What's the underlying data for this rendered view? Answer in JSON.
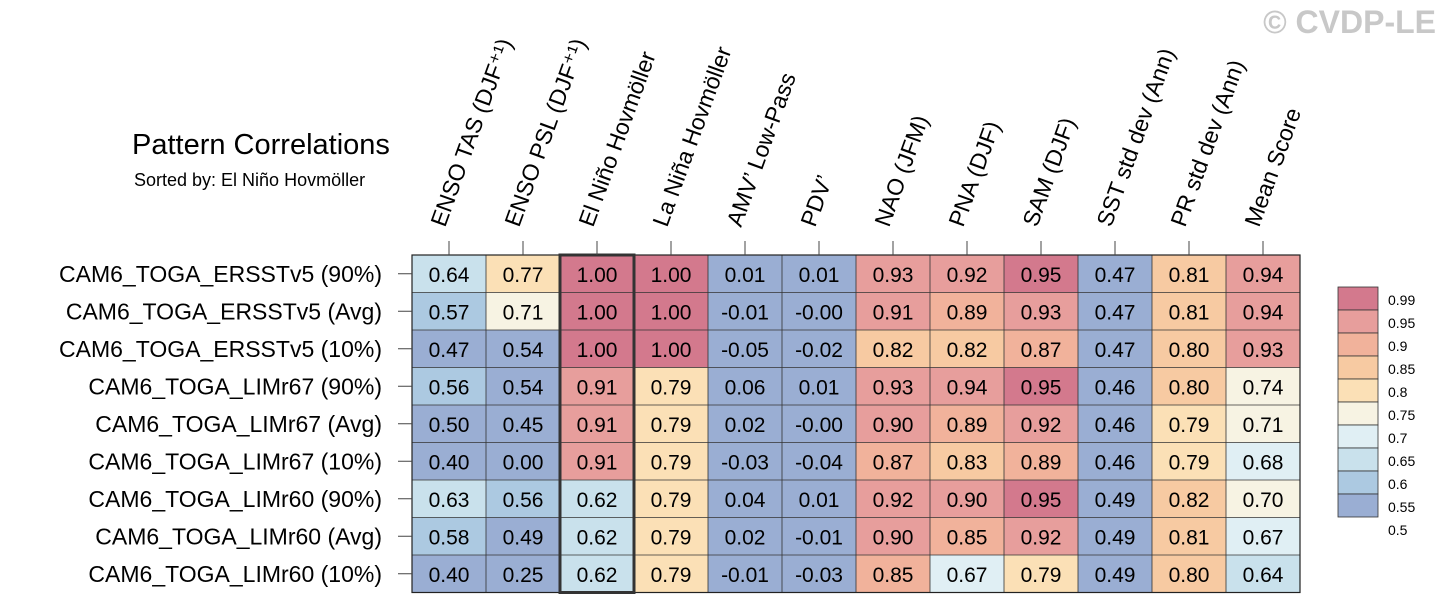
{
  "watermark": "© CVDP-LE",
  "chart_data": {
    "type": "heatmap",
    "title": "Pattern Correlations",
    "subtitle": "Sorted by: El Niño Hovmöller",
    "columns": [
      "ENSO TAS (DJF⁺¹)",
      "ENSO PSL (DJF⁺¹)",
      "El Niño Hovmöller",
      "La Niña Hovmöller",
      "AMV’ Low-Pass",
      "PDV’",
      "NAO (JFM)",
      "PNA (DJF)",
      "SAM (DJF)",
      "SST std dev (Ann)",
      "PR std dev (Ann)",
      "Mean Score"
    ],
    "rows": [
      "CAM6_TOGA_ERSSTv5 (90%)",
      "CAM6_TOGA_ERSSTv5 (Avg)",
      "CAM6_TOGA_ERSSTv5 (10%)",
      "CAM6_TOGA_LIMr67 (90%)",
      "CAM6_TOGA_LIMr67 (Avg)",
      "CAM6_TOGA_LIMr67 (10%)",
      "CAM6_TOGA_LIMr60 (90%)",
      "CAM6_TOGA_LIMr60 (Avg)",
      "CAM6_TOGA_LIMr60 (10%)"
    ],
    "cell_labels": [
      [
        "0.64",
        "0.77",
        "1.00",
        "1.00",
        "0.01",
        "0.01",
        "0.93",
        "0.92",
        "0.95",
        "0.47",
        "0.81",
        "0.94"
      ],
      [
        "0.57",
        "0.71",
        "1.00",
        "1.00",
        "-0.01",
        "-0.00",
        "0.91",
        "0.89",
        "0.93",
        "0.47",
        "0.81",
        "0.94"
      ],
      [
        "0.47",
        "0.54",
        "1.00",
        "1.00",
        "-0.05",
        "-0.02",
        "0.82",
        "0.82",
        "0.87",
        "0.47",
        "0.80",
        "0.93"
      ],
      [
        "0.56",
        "0.54",
        "0.91",
        "0.79",
        "0.06",
        "0.01",
        "0.93",
        "0.94",
        "0.95",
        "0.46",
        "0.80",
        "0.74"
      ],
      [
        "0.50",
        "0.45",
        "0.91",
        "0.79",
        "0.02",
        "-0.00",
        "0.90",
        "0.89",
        "0.92",
        "0.46",
        "0.79",
        "0.71"
      ],
      [
        "0.40",
        "0.00",
        "0.91",
        "0.79",
        "-0.03",
        "-0.04",
        "0.87",
        "0.83",
        "0.89",
        "0.46",
        "0.79",
        "0.68"
      ],
      [
        "0.63",
        "0.56",
        "0.62",
        "0.79",
        "0.04",
        "0.01",
        "0.92",
        "0.90",
        "0.95",
        "0.49",
        "0.82",
        "0.70"
      ],
      [
        "0.58",
        "0.49",
        "0.62",
        "0.79",
        "0.02",
        "-0.01",
        "0.90",
        "0.85",
        "0.92",
        "0.49",
        "0.81",
        "0.67"
      ],
      [
        "0.40",
        "0.25",
        "0.62",
        "0.79",
        "-0.01",
        "-0.03",
        "0.85",
        "0.67",
        "0.79",
        "0.49",
        "0.80",
        "0.64"
      ]
    ],
    "highlighted_column": "El Niño Hovmöller",
    "colorbar": {
      "labels": [
        "0.99",
        "0.95",
        "0.9",
        "0.85",
        "0.8",
        "0.75",
        "0.7",
        "0.65",
        "0.6",
        "0.55",
        "0.5"
      ],
      "colors": [
        "#d3798d",
        "#e79e9c",
        "#f1b29b",
        "#f7caa2",
        "#fbe0b6",
        "#f7f3e3",
        "#e0eff4",
        "#c9e1ec",
        "#acc9e1",
        "#9aaed3"
      ],
      "top_color": "#d3798d",
      "bottom_color": "#9aaed3"
    },
    "value_thresholds": [
      0.5,
      0.55,
      0.6,
      0.65,
      0.7,
      0.75,
      0.8,
      0.85,
      0.9,
      0.95,
      0.99
    ]
  }
}
